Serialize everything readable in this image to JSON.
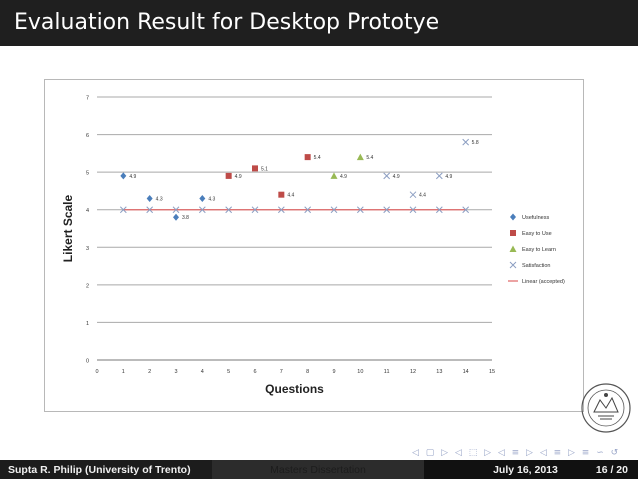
{
  "slide": {
    "title": "Evaluation Result for Desktop Prototye",
    "nav_symbols": "◁ ▢ ▷ ◁ ⬚ ▷ ◁ ≡ ▷ ◁ ≡ ▷ ≡ ∽ ↺"
  },
  "footer": {
    "author": "Supta R. Philip  (University of Trento)",
    "talk": "Masters Dissertation",
    "date": "July 16, 2013",
    "page": "16 / 20"
  },
  "chart_data": {
    "type": "scatter",
    "title": "",
    "xlabel": "Questions",
    "ylabel": "Likert Scale",
    "xlim": [
      0,
      15
    ],
    "ylim": [
      0,
      7
    ],
    "x_ticks": [
      0,
      1,
      2,
      3,
      4,
      5,
      6,
      7,
      8,
      9,
      10,
      11,
      12,
      13,
      14,
      15
    ],
    "y_ticks": [
      0,
      1,
      2,
      3,
      4,
      5,
      6,
      7
    ],
    "grid": "horizontal",
    "legend_position": "right",
    "colors": {
      "usefulness": "#4a7ebb",
      "easy_to_use": "#be4b48",
      "easy_to_learn": "#98b954",
      "satisfaction": "#8c9ec2",
      "linear": "#e06666"
    },
    "series": [
      {
        "name": "Usefulness",
        "marker": "diamond",
        "color_key": "usefulness",
        "points": [
          {
            "x": 1,
            "y": 4.9,
            "label": "4.9"
          },
          {
            "x": 2,
            "y": 4.3,
            "label": "4.3"
          },
          {
            "x": 3,
            "y": 3.8,
            "label": "3.8"
          },
          {
            "x": 4,
            "y": 4.3,
            "label": "4.3"
          }
        ]
      },
      {
        "name": "Easy to Use",
        "marker": "square",
        "color_key": "easy_to_use",
        "points": [
          {
            "x": 5,
            "y": 4.9,
            "label": "4.9"
          },
          {
            "x": 6,
            "y": 5.1,
            "label": "5.1"
          },
          {
            "x": 7,
            "y": 4.4,
            "label": "4.4"
          },
          {
            "x": 8,
            "y": 5.4,
            "label": "5.4"
          }
        ]
      },
      {
        "name": "Easy to Learn",
        "marker": "triangle",
        "color_key": "easy_to_learn",
        "points": [
          {
            "x": 9,
            "y": 4.9,
            "label": "4.9"
          },
          {
            "x": 10,
            "y": 5.4,
            "label": "5.4"
          }
        ]
      },
      {
        "name": "Satisfaction",
        "marker": "x",
        "color_key": "satisfaction",
        "points": [
          {
            "x": 11,
            "y": 4.9,
            "label": "4.9"
          },
          {
            "x": 12,
            "y": 4.4,
            "label": "4.4"
          },
          {
            "x": 13,
            "y": 4.9,
            "label": "4.9"
          },
          {
            "x": 14,
            "y": 5.8,
            "label": "5.8"
          }
        ]
      },
      {
        "name": "Linear (accepted)",
        "marker": "line",
        "color_key": "linear",
        "points": [
          {
            "x": 1,
            "y": 4
          },
          {
            "x": 2,
            "y": 4
          },
          {
            "x": 3,
            "y": 4
          },
          {
            "x": 4,
            "y": 4
          },
          {
            "x": 5,
            "y": 4
          },
          {
            "x": 6,
            "y": 4
          },
          {
            "x": 7,
            "y": 4
          },
          {
            "x": 8,
            "y": 4
          },
          {
            "x": 9,
            "y": 4
          },
          {
            "x": 10,
            "y": 4
          },
          {
            "x": 11,
            "y": 4
          },
          {
            "x": 12,
            "y": 4
          },
          {
            "x": 13,
            "y": 4
          },
          {
            "x": 14,
            "y": 4
          }
        ]
      }
    ]
  }
}
